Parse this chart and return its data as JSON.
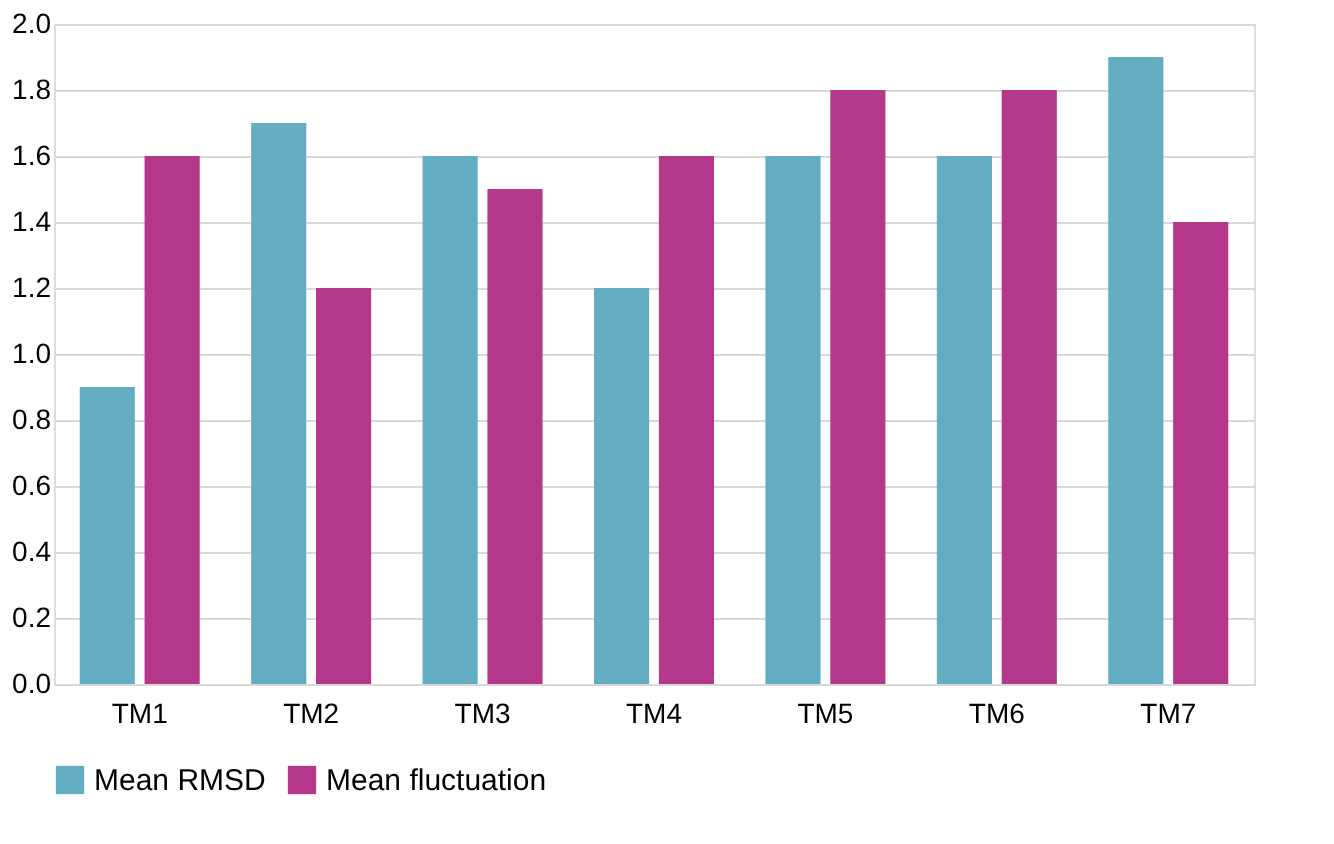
{
  "chart_data": {
    "type": "bar",
    "categories": [
      "TM1",
      "TM2",
      "TM3",
      "TM4",
      "TM5",
      "TM6",
      "TM7"
    ],
    "series": [
      {
        "name": "Mean RMSD",
        "color": "#62adc2",
        "values": [
          0.9,
          1.7,
          1.6,
          1.2,
          1.6,
          1.6,
          1.9
        ]
      },
      {
        "name": "Mean fluctuation",
        "color": "#b3388a",
        "values": [
          1.6,
          1.2,
          1.5,
          1.6,
          1.8,
          1.8,
          1.4
        ]
      }
    ],
    "ylim": [
      0,
      2
    ],
    "yticks": [
      {
        "value": 0,
        "label": "0.0"
      },
      {
        "value": 0.2,
        "label": "0.2"
      },
      {
        "value": 0.4,
        "label": "0.4"
      },
      {
        "value": 0.6,
        "label": "0.6"
      },
      {
        "value": 0.8,
        "label": "0.8"
      },
      {
        "value": 1,
        "label": "1.0"
      },
      {
        "value": 1.2,
        "label": "1.2"
      },
      {
        "value": 1.4,
        "label": "1.4"
      },
      {
        "value": 1.6,
        "label": "1.6"
      },
      {
        "value": 1.8,
        "label": "1.8"
      },
      {
        "value": 2,
        "label": "2.0"
      }
    ],
    "grid": "y",
    "legend": "bottom"
  }
}
